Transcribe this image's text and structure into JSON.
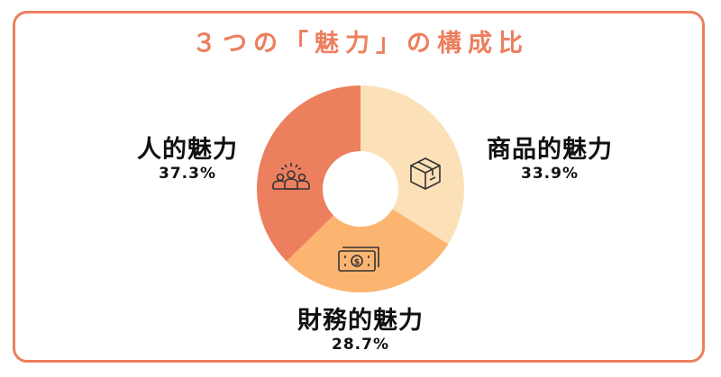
{
  "title": "３つの「魅力」の構成比",
  "colors": {
    "accent": "#EC7F5E",
    "border": "#EC7F5E"
  },
  "chart_data": {
    "type": "pie",
    "donut": true,
    "title": "３つの「魅力」の構成比",
    "slices": [
      {
        "label": "商品的魅力",
        "value": 33.9,
        "display": "33.9%",
        "color": "#FCE1B8",
        "icon": "package-box-icon"
      },
      {
        "label": "財務的魅力",
        "value": 28.7,
        "display": "28.7%",
        "color": "#FBB571",
        "icon": "banknote-dollar-icon"
      },
      {
        "label": "人的魅力",
        "value": 37.3,
        "display": "37.3%",
        "color": "#EC7F5E",
        "icon": "people-group-icon"
      }
    ]
  }
}
